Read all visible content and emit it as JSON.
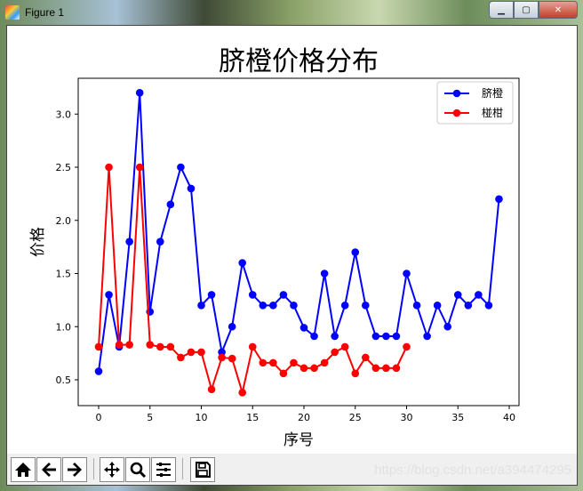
{
  "window": {
    "title": "Figure 1",
    "buttons": {
      "minimize": "minimize",
      "maximize": "maximize",
      "close": "close"
    }
  },
  "toolbar": {
    "items": [
      {
        "name": "home-icon",
        "label": "Home"
      },
      {
        "name": "back-icon",
        "label": "Back"
      },
      {
        "name": "forward-icon",
        "label": "Forward"
      },
      {
        "name": "pan-icon",
        "label": "Pan"
      },
      {
        "name": "zoom-icon",
        "label": "Zoom"
      },
      {
        "name": "configure-subplots-icon",
        "label": "Subplots"
      },
      {
        "name": "save-icon",
        "label": "Save"
      }
    ],
    "watermark": "https://blog.csdn.net/a394474295"
  },
  "chart_data": {
    "type": "line",
    "title": "脐橙价格分布",
    "xlabel": "序号",
    "ylabel": "价格",
    "xlim": [
      -2,
      41
    ],
    "ylim": [
      0.24,
      3.33
    ],
    "xticks": [
      0,
      5,
      10,
      15,
      20,
      25,
      30,
      35,
      40
    ],
    "yticks": [
      0.5,
      1.0,
      1.5,
      2.0,
      2.5,
      3.0
    ],
    "ytick_labels": [
      "0.5",
      "1.0",
      "1.5",
      "2.0",
      "2.5",
      "3.0"
    ],
    "grid": false,
    "legend_position": "upper right",
    "series": [
      {
        "name": "脐橙",
        "color": "#0000ff",
        "marker": "o",
        "x": [
          0,
          1,
          2,
          3,
          4,
          5,
          6,
          7,
          8,
          9,
          10,
          11,
          12,
          13,
          14,
          15,
          16,
          17,
          18,
          19,
          20,
          21,
          22,
          23,
          24,
          25,
          26,
          27,
          28,
          29,
          30,
          31,
          32,
          33,
          34,
          35,
          36,
          37,
          38,
          39
        ],
        "values": [
          0.58,
          1.3,
          0.81,
          1.8,
          3.2,
          1.14,
          1.8,
          2.15,
          2.5,
          2.3,
          1.2,
          1.3,
          0.76,
          1.0,
          1.6,
          1.3,
          1.2,
          1.2,
          1.3,
          1.2,
          0.99,
          0.91,
          1.5,
          0.91,
          1.2,
          1.7,
          1.2,
          0.91,
          0.91,
          0.91,
          1.5,
          1.2,
          0.91,
          1.2,
          1.0,
          1.3,
          1.2,
          1.3,
          1.2,
          2.2
        ]
      },
      {
        "name": "椪柑",
        "color": "#ff0000",
        "marker": "o",
        "x": [
          0,
          1,
          2,
          3,
          4,
          5,
          6,
          7,
          8,
          9,
          10,
          11,
          12,
          13,
          14,
          15,
          16,
          17,
          18,
          19,
          20,
          21,
          22,
          23,
          24,
          25,
          26,
          27,
          28,
          29,
          30
        ],
        "values": [
          0.81,
          2.5,
          0.83,
          0.83,
          2.5,
          0.83,
          0.81,
          0.81,
          0.71,
          0.76,
          0.76,
          0.41,
          0.71,
          0.7,
          0.38,
          0.81,
          0.66,
          0.66,
          0.56,
          0.66,
          0.61,
          0.61,
          0.66,
          0.76,
          0.81,
          0.56,
          0.71,
          0.61,
          0.61,
          0.61,
          0.81
        ]
      }
    ]
  }
}
